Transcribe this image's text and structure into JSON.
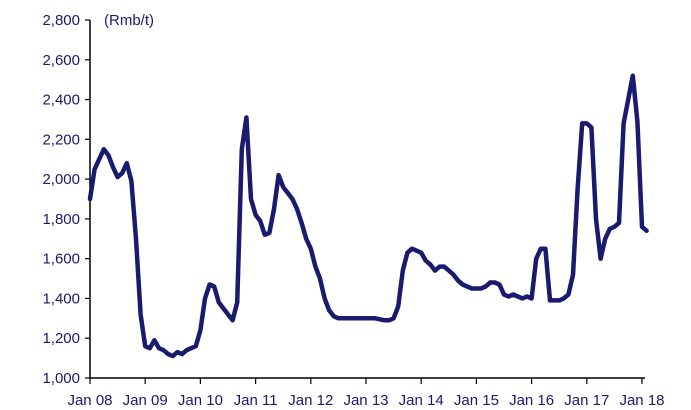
{
  "chart_data": {
    "type": "line",
    "unit_label": "(Rmb/t)",
    "ylim": [
      1000,
      2800
    ],
    "y_ticks": [
      1000,
      1200,
      1400,
      1600,
      1800,
      2000,
      2200,
      2400,
      2600,
      2800
    ],
    "y_tick_labels": [
      "1,000",
      "1,200",
      "1,400",
      "1,600",
      "1,800",
      "2,000",
      "2,200",
      "2,400",
      "2,600",
      "2,800"
    ],
    "x_ticks": [
      "2008-01",
      "2009-01",
      "2010-01",
      "2011-01",
      "2012-01",
      "2013-01",
      "2014-01",
      "2015-01",
      "2016-01",
      "2017-01",
      "2018-01"
    ],
    "x_tick_labels": [
      "Jan 08",
      "Jan 09",
      "Jan 10",
      "Jan 11",
      "Jan 12",
      "Jan 13",
      "Jan 14",
      "Jan 15",
      "Jan 16",
      "Jan 17",
      "Jan 18"
    ],
    "xlim": [
      "2008-01",
      "2018-01"
    ],
    "grid": false,
    "line_color": "#1a1a6e",
    "series": [
      {
        "points": [
          [
            "2008-01",
            1900
          ],
          [
            "2008-02",
            2050
          ],
          [
            "2008-03",
            2100
          ],
          [
            "2008-04",
            2150
          ],
          [
            "2008-05",
            2120
          ],
          [
            "2008-06",
            2060
          ],
          [
            "2008-07",
            2010
          ],
          [
            "2008-08",
            2030
          ],
          [
            "2008-09",
            2080
          ],
          [
            "2008-10",
            1990
          ],
          [
            "2008-11",
            1700
          ],
          [
            "2008-12",
            1320
          ],
          [
            "2009-01",
            1160
          ],
          [
            "2009-02",
            1150
          ],
          [
            "2009-03",
            1190
          ],
          [
            "2009-04",
            1150
          ],
          [
            "2009-05",
            1140
          ],
          [
            "2009-06",
            1120
          ],
          [
            "2009-07",
            1110
          ],
          [
            "2009-08",
            1130
          ],
          [
            "2009-09",
            1120
          ],
          [
            "2009-10",
            1140
          ],
          [
            "2009-11",
            1150
          ],
          [
            "2009-12",
            1160
          ],
          [
            "2010-01",
            1240
          ],
          [
            "2010-02",
            1400
          ],
          [
            "2010-03",
            1470
          ],
          [
            "2010-04",
            1460
          ],
          [
            "2010-05",
            1380
          ],
          [
            "2010-06",
            1350
          ],
          [
            "2010-07",
            1320
          ],
          [
            "2010-08",
            1290
          ],
          [
            "2010-09",
            1380
          ],
          [
            "2010-10",
            2150
          ],
          [
            "2010-11",
            2310
          ],
          [
            "2010-12",
            1900
          ],
          [
            "2011-01",
            1820
          ],
          [
            "2011-02",
            1790
          ],
          [
            "2011-03",
            1720
          ],
          [
            "2011-04",
            1730
          ],
          [
            "2011-05",
            1850
          ],
          [
            "2011-06",
            2020
          ],
          [
            "2011-07",
            1960
          ],
          [
            "2011-08",
            1930
          ],
          [
            "2011-09",
            1900
          ],
          [
            "2011-10",
            1850
          ],
          [
            "2011-11",
            1780
          ],
          [
            "2011-12",
            1700
          ],
          [
            "2012-01",
            1650
          ],
          [
            "2012-02",
            1560
          ],
          [
            "2012-03",
            1500
          ],
          [
            "2012-04",
            1400
          ],
          [
            "2012-05",
            1340
          ],
          [
            "2012-06",
            1310
          ],
          [
            "2012-07",
            1300
          ],
          [
            "2012-08",
            1300
          ],
          [
            "2012-09",
            1300
          ],
          [
            "2012-10",
            1300
          ],
          [
            "2012-11",
            1300
          ],
          [
            "2012-12",
            1300
          ],
          [
            "2013-01",
            1300
          ],
          [
            "2013-02",
            1300
          ],
          [
            "2013-03",
            1300
          ],
          [
            "2013-04",
            1295
          ],
          [
            "2013-05",
            1290
          ],
          [
            "2013-06",
            1290
          ],
          [
            "2013-07",
            1300
          ],
          [
            "2013-08",
            1360
          ],
          [
            "2013-09",
            1540
          ],
          [
            "2013-10",
            1630
          ],
          [
            "2013-11",
            1650
          ],
          [
            "2013-12",
            1640
          ],
          [
            "2014-01",
            1630
          ],
          [
            "2014-02",
            1590
          ],
          [
            "2014-03",
            1570
          ],
          [
            "2014-04",
            1540
          ],
          [
            "2014-05",
            1560
          ],
          [
            "2014-06",
            1560
          ],
          [
            "2014-07",
            1540
          ],
          [
            "2014-08",
            1520
          ],
          [
            "2014-09",
            1490
          ],
          [
            "2014-10",
            1470
          ],
          [
            "2014-11",
            1460
          ],
          [
            "2014-12",
            1450
          ],
          [
            "2015-01",
            1450
          ],
          [
            "2015-02",
            1450
          ],
          [
            "2015-03",
            1460
          ],
          [
            "2015-04",
            1480
          ],
          [
            "2015-05",
            1480
          ],
          [
            "2015-06",
            1470
          ],
          [
            "2015-07",
            1420
          ],
          [
            "2015-08",
            1410
          ],
          [
            "2015-09",
            1420
          ],
          [
            "2015-10",
            1410
          ],
          [
            "2015-11",
            1400
          ],
          [
            "2015-12",
            1410
          ],
          [
            "2016-01",
            1400
          ],
          [
            "2016-02",
            1600
          ],
          [
            "2016-03",
            1650
          ],
          [
            "2016-04",
            1650
          ],
          [
            "2016-05",
            1390
          ],
          [
            "2016-06",
            1390
          ],
          [
            "2016-07",
            1390
          ],
          [
            "2016-08",
            1400
          ],
          [
            "2016-09",
            1420
          ],
          [
            "2016-10",
            1520
          ],
          [
            "2016-11",
            1950
          ],
          [
            "2016-12",
            2280
          ],
          [
            "2017-01",
            2280
          ],
          [
            "2017-02",
            2260
          ],
          [
            "2017-03",
            1800
          ],
          [
            "2017-04",
            1600
          ],
          [
            "2017-05",
            1700
          ],
          [
            "2017-06",
            1750
          ],
          [
            "2017-07",
            1760
          ],
          [
            "2017-08",
            1780
          ],
          [
            "2017-09",
            2280
          ],
          [
            "2017-10",
            2400
          ],
          [
            "2017-11",
            2520
          ],
          [
            "2017-12",
            2290
          ],
          [
            "2018-01",
            1760
          ],
          [
            "2018-02",
            1740
          ]
        ]
      }
    ]
  }
}
